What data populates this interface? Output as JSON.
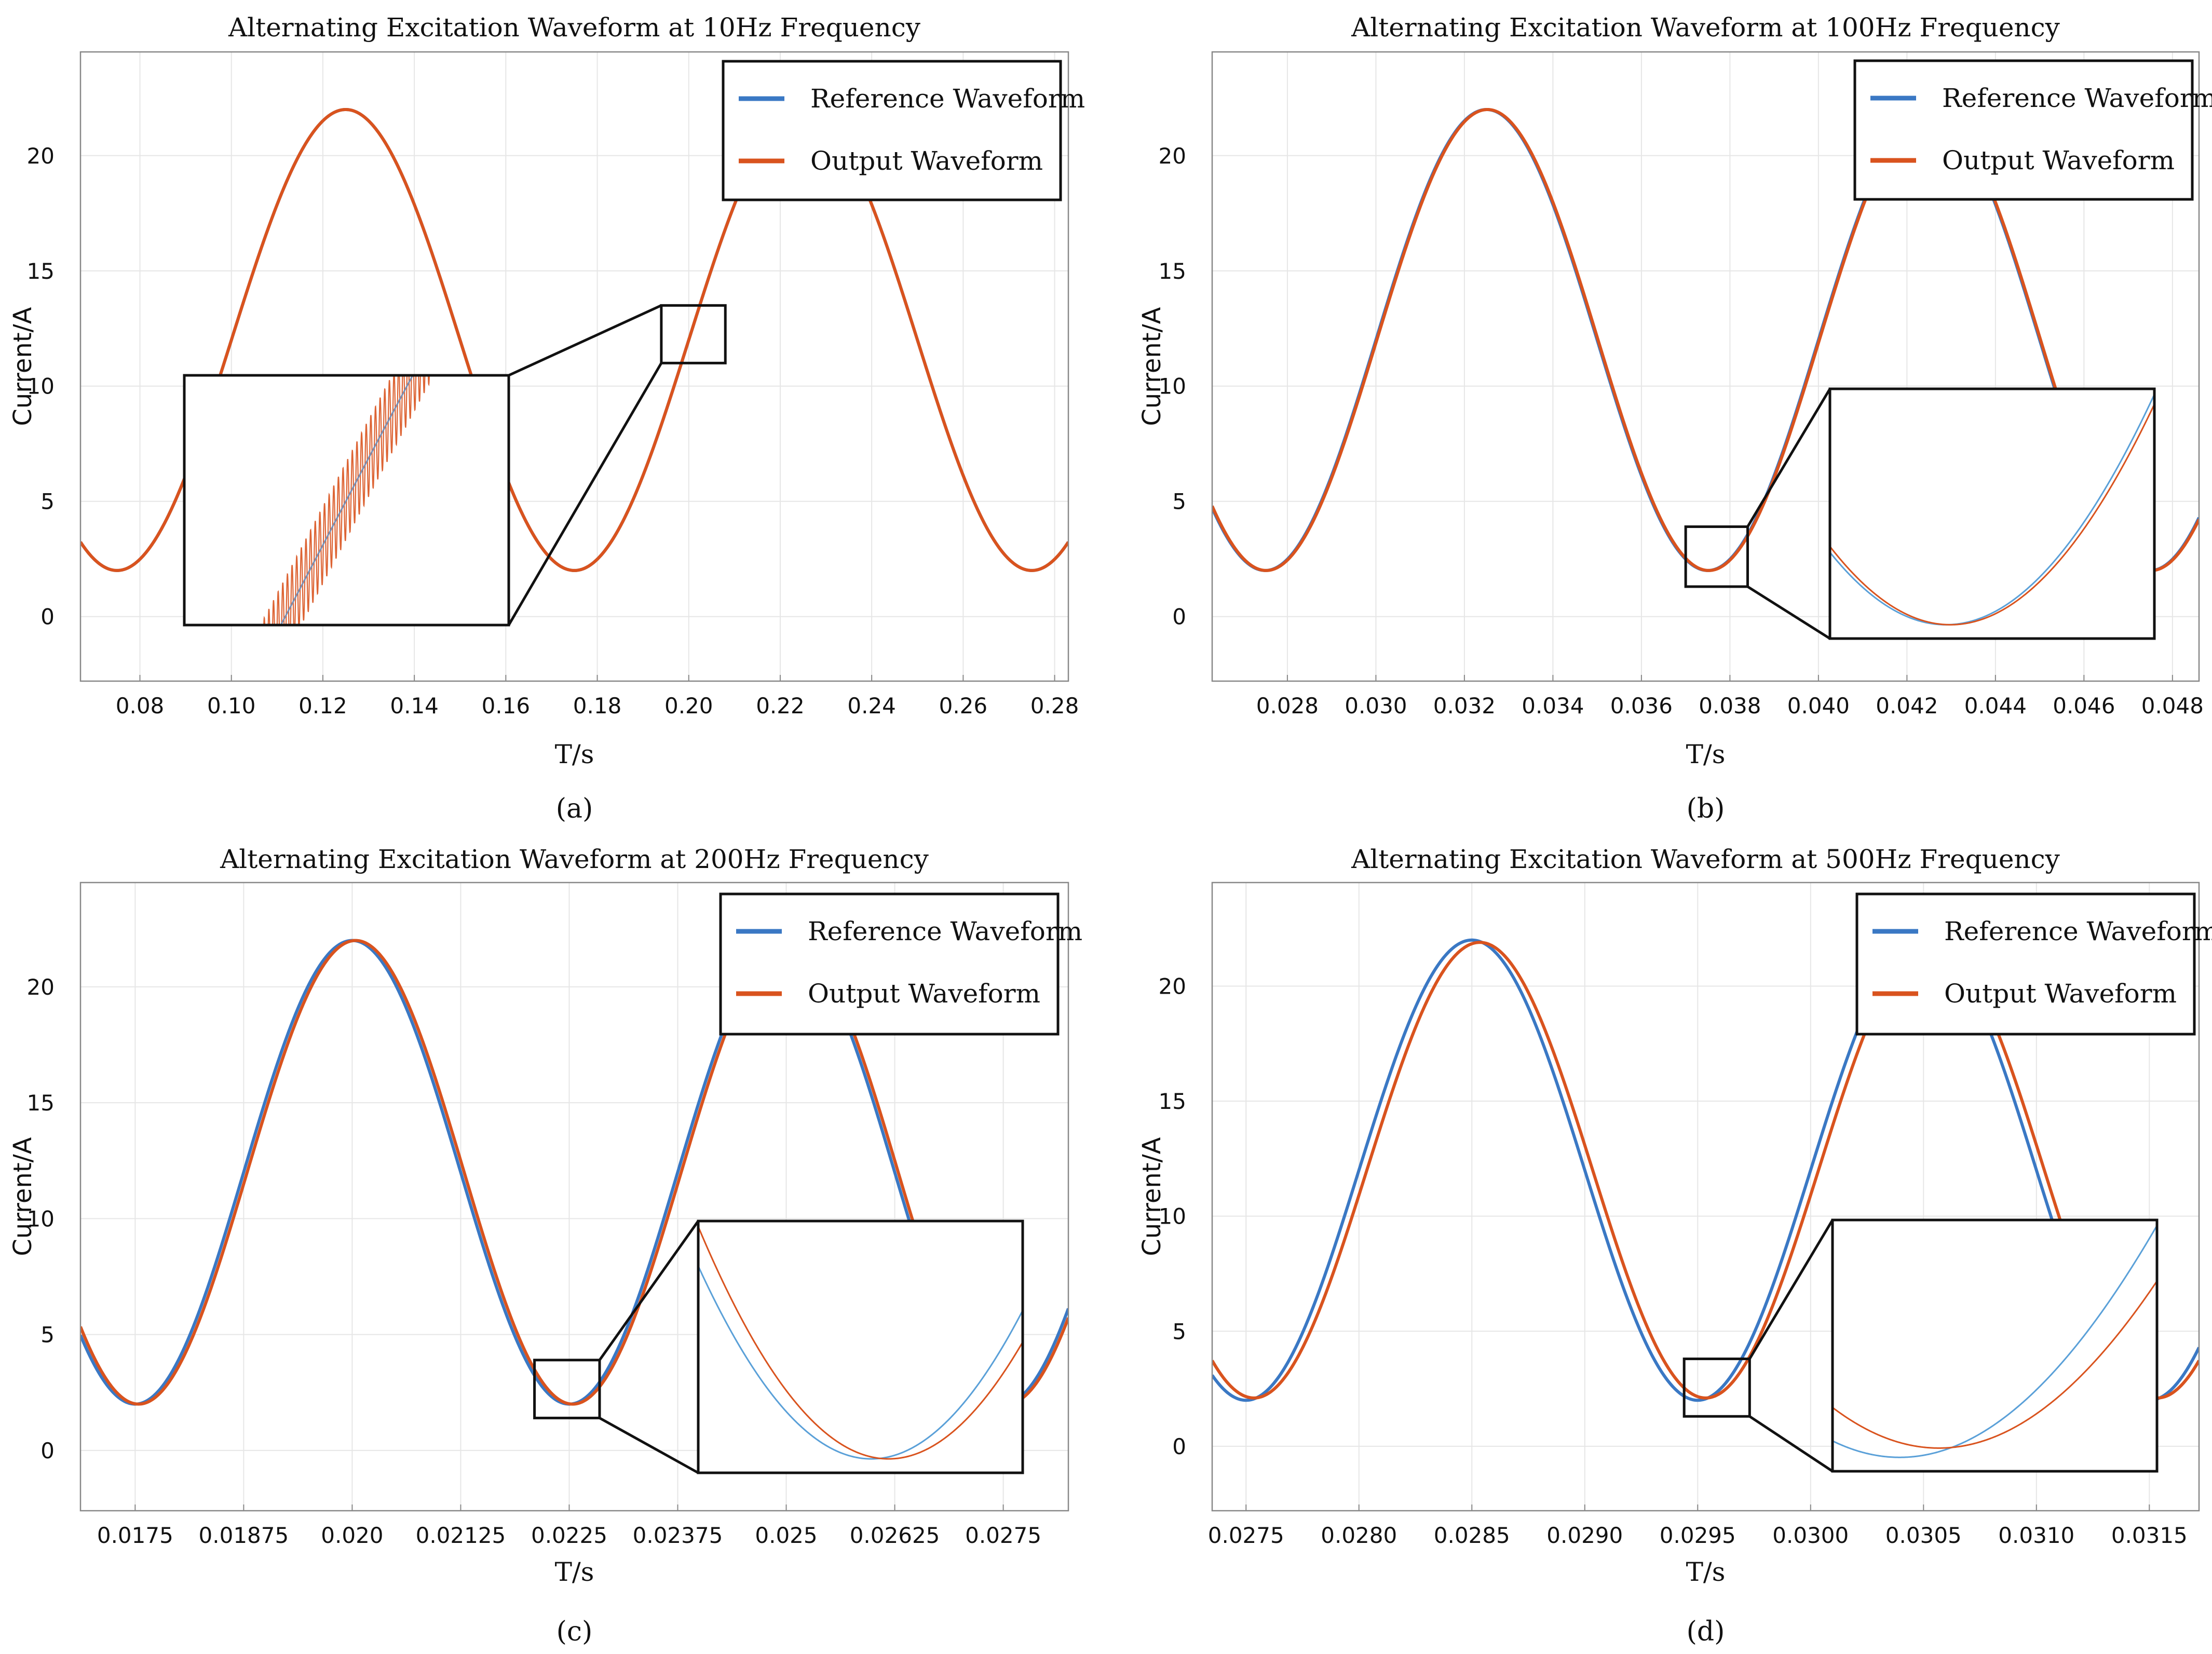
{
  "colors": {
    "reference": "#3a78c4",
    "output": "#d9531e",
    "grid": "#e6e6e6",
    "axis": "#888888",
    "box": "#111111"
  },
  "chart_data": [
    {
      "type": "line",
      "label": "(a)",
      "title": "Alternating Excitation Waveform at 10Hz Frequency",
      "xlabel": "T/s",
      "ylabel": "Current/A",
      "xlim": [
        0.067,
        0.283
      ],
      "ylim": [
        -2.8,
        24.5
      ],
      "xticks": [
        "0.08",
        "0.10",
        "0.12",
        "0.14",
        "0.16",
        "0.18",
        "0.20",
        "0.22",
        "0.24",
        "0.26",
        "0.28"
      ],
      "xtick_values": [
        0.08,
        0.1,
        0.12,
        0.14,
        0.16,
        0.18,
        0.2,
        0.22,
        0.24,
        0.26,
        0.28
      ],
      "yticks": [
        "0",
        "5",
        "10",
        "15",
        "20"
      ],
      "ytick_values": [
        0,
        5,
        10,
        15,
        20
      ],
      "grid": true,
      "legend": {
        "position": "top-right",
        "items": [
          "Reference Waveform",
          "Output Waveform"
        ]
      },
      "signal": {
        "offset": 12,
        "amplitude": 10,
        "frequency_hz": 10,
        "peak_at": 0.125
      },
      "series": [
        {
          "name": "Reference Waveform",
          "phase_shift": 0.0
        },
        {
          "name": "Output Waveform",
          "phase_shift": 0.0,
          "ripple": true
        }
      ],
      "zoom_box": {
        "x": [
          0.194,
          0.208
        ],
        "y": [
          11.0,
          13.5
        ]
      },
      "inset": {
        "x": [
          0.09,
          0.161
        ],
        "y": [
          -0.3,
          10.7
        ]
      }
    },
    {
      "type": "line",
      "label": "(b)",
      "title": "Alternating Excitation Waveform at 100Hz Frequency",
      "xlabel": "T/s",
      "ylabel": "Current/A",
      "xlim": [
        0.0263,
        0.0486
      ],
      "ylim": [
        -2.8,
        24.5
      ],
      "xticks": [
        "0.028",
        "0.030",
        "0.032",
        "0.034",
        "0.036",
        "0.038",
        "0.040",
        "0.042",
        "0.044",
        "0.046",
        "0.048"
      ],
      "xtick_values": [
        0.028,
        0.03,
        0.032,
        0.034,
        0.036,
        0.038,
        0.04,
        0.042,
        0.044,
        0.046,
        0.048
      ],
      "yticks": [
        "0",
        "5",
        "10",
        "15",
        "20"
      ],
      "ytick_values": [
        0,
        5,
        10,
        15,
        20
      ],
      "grid": true,
      "legend": {
        "position": "top-right",
        "items": [
          "Reference Waveform",
          "Output Waveform"
        ]
      },
      "signal": {
        "offset": 12,
        "amplitude": 10,
        "frequency_hz": 100,
        "peak_at": 0.0325
      },
      "series": [
        {
          "name": "Reference Waveform",
          "phase_shift": 0.0
        },
        {
          "name": "Output Waveform",
          "phase_shift": 2e-05
        }
      ],
      "zoom_box": {
        "x": [
          0.037,
          0.0384
        ],
        "y": [
          1.3,
          3.9
        ]
      },
      "inset": {
        "x": [
          0.0403,
          0.0475
        ],
        "y": [
          -1.0,
          10.1
        ]
      }
    },
    {
      "type": "line",
      "label": "(c)",
      "title": "Alternating Excitation Waveform at 200Hz Frequency",
      "xlabel": "T/s",
      "ylabel": "Current/A",
      "xlim": [
        0.01687,
        0.02825
      ],
      "ylim": [
        -2.6,
        24.5
      ],
      "xticks": [
        "0.0175",
        "0.01875",
        "0.020",
        "0.02125",
        "0.0225",
        "0.02375",
        "0.025",
        "0.02625",
        "0.0275"
      ],
      "xtick_values": [
        0.0175,
        0.01875,
        0.02,
        0.02125,
        0.0225,
        0.02375,
        0.025,
        0.02625,
        0.0275
      ],
      "yticks": [
        "0",
        "5",
        "10",
        "15",
        "20"
      ],
      "ytick_values": [
        0,
        5,
        10,
        15,
        20
      ],
      "grid": true,
      "legend": {
        "position": "top-right",
        "items": [
          "Reference Waveform",
          "Output Waveform"
        ]
      },
      "signal": {
        "offset": 12,
        "amplitude": 10,
        "frequency_hz": 200,
        "peak_at": 0.02
      },
      "series": [
        {
          "name": "Reference Waveform",
          "phase_shift": 0.0
        },
        {
          "name": "Output Waveform",
          "phase_shift": 4e-05
        }
      ],
      "zoom_box": {
        "x": [
          0.0221,
          0.02285
        ],
        "y": [
          1.4,
          3.9
        ]
      },
      "inset": {
        "x": [
          0.02395,
          0.02745
        ],
        "y": [
          -1.0,
          10.2
        ]
      }
    },
    {
      "type": "line",
      "label": "(d)",
      "title": "Alternating Excitation Waveform at 500Hz Frequency",
      "xlabel": "T/s",
      "ylabel": "Current/A",
      "xlim": [
        0.02735,
        0.03172
      ],
      "ylim": [
        -2.8,
        24.5
      ],
      "xticks": [
        "0.0275",
        "0.0280",
        "0.0285",
        "0.0290",
        "0.0295",
        "0.0300",
        "0.0305",
        "0.0310",
        "0.0315"
      ],
      "xtick_values": [
        0.0275,
        0.028,
        0.0285,
        0.029,
        0.0295,
        0.03,
        0.0305,
        0.031,
        0.0315
      ],
      "yticks": [
        "0",
        "5",
        "10",
        "15",
        "20"
      ],
      "ytick_values": [
        0,
        5,
        10,
        15,
        20
      ],
      "grid": true,
      "legend": {
        "position": "top-right",
        "items": [
          "Reference Waveform",
          "Output Waveform"
        ]
      },
      "signal": {
        "offset": 12,
        "amplitude": 10,
        "frequency_hz": 500,
        "peak_at": 0.0285
      },
      "series": [
        {
          "name": "Reference Waveform",
          "phase_shift": 0.0,
          "amplitude_scale": 1.0
        },
        {
          "name": "Output Waveform",
          "phase_shift": 3.5e-05,
          "amplitude_scale": 0.99
        }
      ],
      "zoom_box": {
        "x": [
          0.02944,
          0.02973
        ],
        "y": [
          1.3,
          3.8
        ]
      },
      "inset": {
        "x": [
          0.03008,
          0.0315
        ],
        "y": [
          -1.0,
          10.0
        ]
      }
    }
  ]
}
